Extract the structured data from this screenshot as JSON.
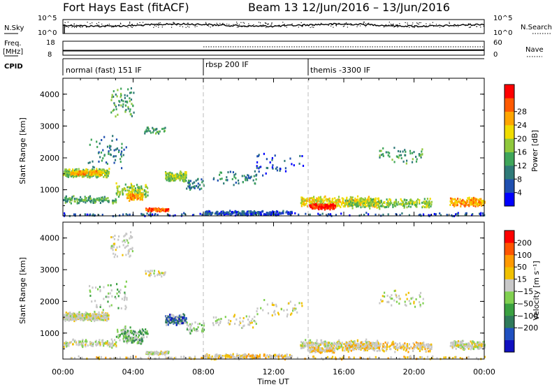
{
  "header": {
    "station": "Fort Hays East (fitACF)",
    "beam": "Beam 13",
    "date_range": "12/Jun/2016 – 13/Jun/2016"
  },
  "noise_panel": {
    "left_label": "N.Sky",
    "right_label": "N.Search",
    "left_ticks": [
      "10^5",
      "10^0"
    ],
    "right_ticks": [
      "10^5",
      "10^0"
    ]
  },
  "freq_panel": {
    "left_label_1": "Freq.",
    "left_label_2": "[MHz]",
    "right_label": "Nave",
    "left_ticks": [
      "18",
      "8"
    ],
    "right_ticks": [
      "60",
      "0"
    ]
  },
  "cpid_panel": {
    "label": "CPID",
    "modes": [
      {
        "name": "normal (fast) 151 IF",
        "start_hour": 0
      },
      {
        "name": "rbsp 200 IF",
        "start_hour": 8
      },
      {
        "name": "themis -3300 IF",
        "start_hour": 14
      }
    ]
  },
  "chart_data": [
    {
      "type": "heatmap",
      "name": "power",
      "ylabel": "Slant Range [km]",
      "ylim": [
        180,
        4500
      ],
      "yticks": [
        "1000",
        "2000",
        "3000",
        "4000"
      ],
      "colorbar_label": "Power [dB]",
      "colorbar_ticks": [
        "4",
        "8",
        "12",
        "16",
        "20",
        "24",
        "28"
      ],
      "colors": [
        "#0000ff",
        "#1f4fb0",
        "#2f7a78",
        "#3fa55a",
        "#8fc83c",
        "#f0dc00",
        "#ffa500",
        "#ff5a00",
        "#ff0000"
      ]
    },
    {
      "type": "heatmap",
      "name": "velocity",
      "ylabel": "Slant Range [km]",
      "xlabel": "Time UT",
      "ylim": [
        180,
        4500
      ],
      "yticks": [
        "1000",
        "2000",
        "3000",
        "4000"
      ],
      "xticks": [
        "00:00",
        "04:00",
        "08:00",
        "12:00",
        "16:00",
        "20:00",
        "00:00"
      ],
      "xlim_hours": [
        0,
        24
      ],
      "colorbar_label": "Velocity [m s⁻¹]",
      "colorbar_ticks": [
        "200",
        "100",
        "50",
        "15",
        "−15",
        "−50",
        "−100",
        "−200"
      ],
      "colors": [
        "#1010c0",
        "#2050c0",
        "#2f7a5a",
        "#3aa040",
        "#80d050",
        "#c8c8c8",
        "#f0c000",
        "#ff9900",
        "#ff5500",
        "#ff0000"
      ]
    }
  ]
}
